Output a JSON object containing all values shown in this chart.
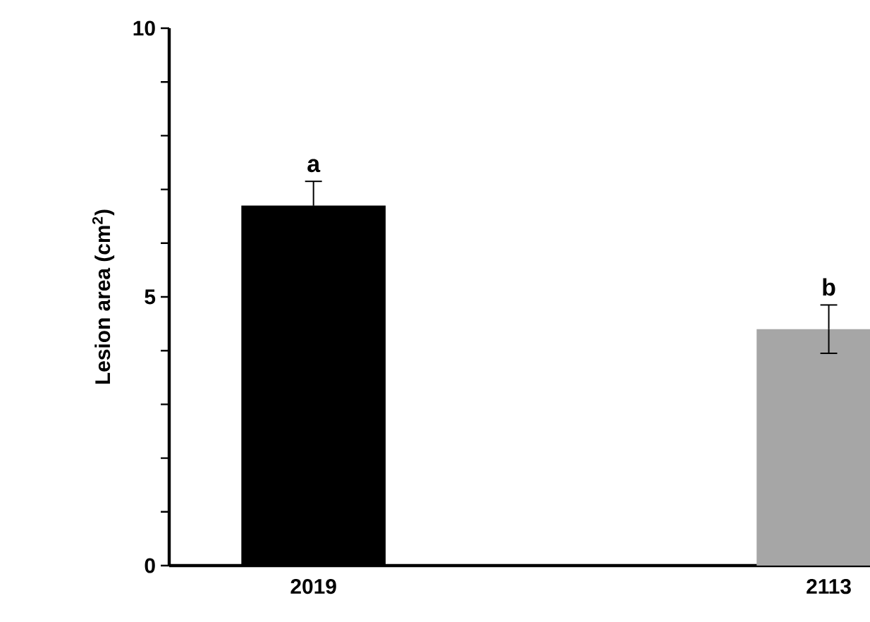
{
  "chart_data": {
    "type": "bar",
    "ylabel": "Lesion area (cm$^{2}$)",
    "categories": [
      "2019",
      "2113"
    ],
    "values": [
      6.7,
      4.4
    ],
    "colors": [
      "#000000",
      "#a6a6a6"
    ],
    "errors": [
      0.45,
      0.45
    ],
    "ylim": [
      0,
      10
    ],
    "yticks": [
      0,
      {
        "value": 1,
        "label": null
      },
      {
        "value": 2,
        "label": null
      },
      {
        "value": 3,
        "label": null
      },
      {
        "value": 4,
        "label": null
      },
      5,
      {
        "value": 6,
        "label": null
      },
      {
        "value": 7,
        "label": null
      },
      {
        "value": 8,
        "label": null
      },
      {
        "value": 9,
        "label": null
      },
      10
    ],
    "annotations": [
      "a",
      "b"
    ],
    "grid": false
  }
}
